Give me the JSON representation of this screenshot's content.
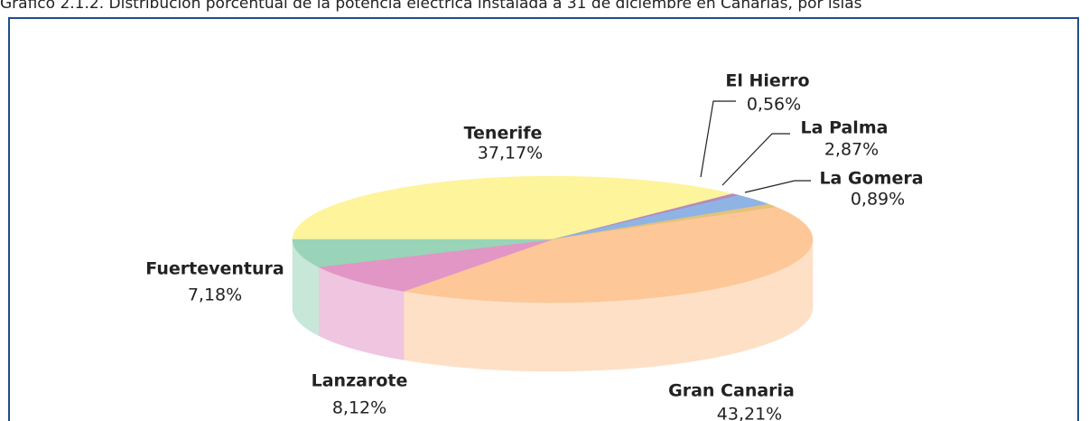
{
  "chart_data": {
    "type": "pie",
    "title": "Gráfico 2.1.2. Distribución porcentual de la potencia eléctrica instalada a 31 de diciembre en Canarias, por islas",
    "categories": [
      "Tenerife",
      "El Hierro",
      "La Palma",
      "La Gomera",
      "Gran Canaria",
      "Lanzarote",
      "Fuerteventura"
    ],
    "values": [
      37.17,
      0.56,
      2.87,
      0.89,
      43.21,
      8.12,
      7.18
    ],
    "value_labels": [
      "37,17%",
      "0,56%",
      "2,87%",
      "0,89%",
      "43,21%",
      "8,12%",
      "7,18%"
    ],
    "colors": [
      "#fdf49c",
      "#b48ac0",
      "#8fb4e3",
      "#e3c27a",
      "#fdc797",
      "#e196c6",
      "#99d4b8"
    ]
  }
}
